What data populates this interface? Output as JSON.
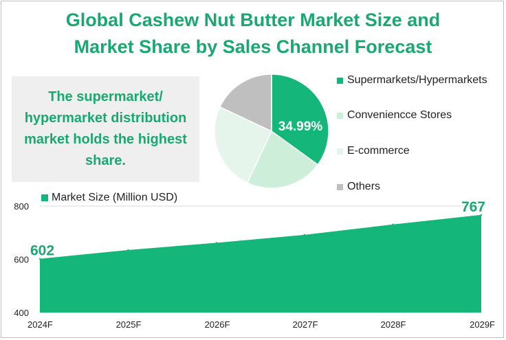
{
  "title_line1": "Global Cashew Nut Butter Market Size and",
  "title_line2": "Market Share by Sales Channel Forecast",
  "note": {
    "line1": "The supermarket/",
    "line2": "hypermarket distribution",
    "line3": "market holds the highest",
    "line4": "share."
  },
  "colors": {
    "accent": "#1aa872",
    "area": "#14b67a",
    "supermarkets": "#14b67a",
    "convenience": "#cdeed9",
    "ecommerce": "#e6f5ec",
    "others": "#bfbfbf"
  },
  "chart_data": [
    {
      "type": "pie",
      "slices": [
        {
          "name": "Supermarkets/Hypermarkets",
          "value": 34.99,
          "label": "34.99%"
        },
        {
          "name": "Conveniencce Stores",
          "value": 22
        },
        {
          "name": "E-commerce",
          "value": 25
        },
        {
          "name": "Others",
          "value": 18.01
        }
      ],
      "legend_position": "right"
    },
    {
      "type": "area",
      "series": [
        {
          "name": "Market Size (Million USD)",
          "values": [
            602,
            635,
            662,
            692,
            731,
            767
          ]
        }
      ],
      "categories": [
        "2024F",
        "2025F",
        "2026F",
        "2027F",
        "2028F",
        "2029F"
      ],
      "data_labels": [
        "602",
        "767"
      ],
      "y_ticks": [
        "400",
        "600",
        "800"
      ],
      "ylim": [
        400,
        800
      ],
      "grid": true
    }
  ]
}
